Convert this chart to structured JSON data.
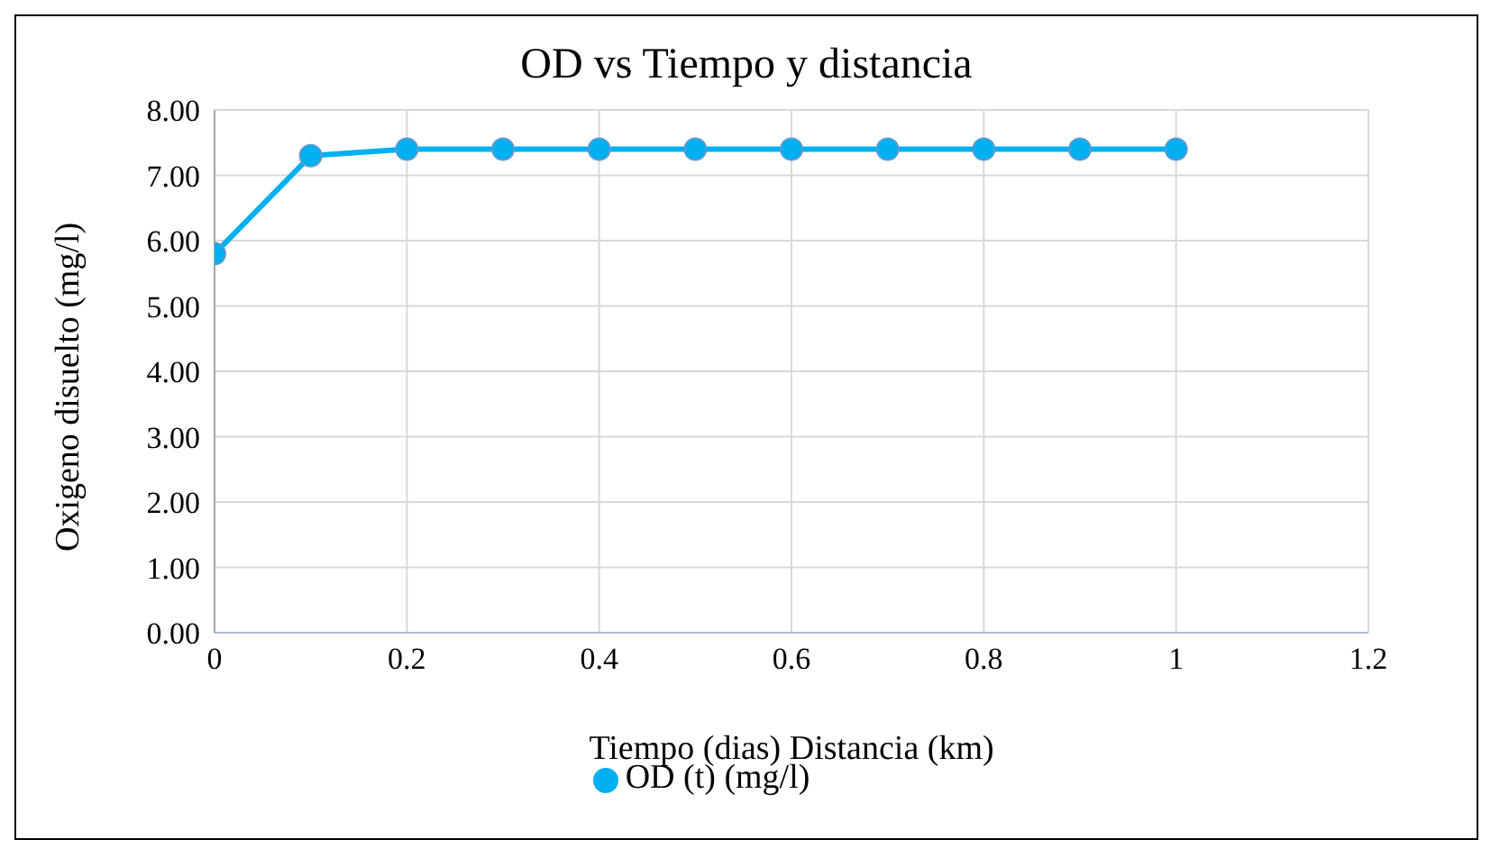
{
  "chart_data": {
    "type": "line",
    "title": "OD vs Tiempo y distancia",
    "xlabel": "Tiempo (dias)  Distancia (km)",
    "ylabel": "Oxigeno disuelto (mg/l)",
    "x": [
      0,
      0.1,
      0.2,
      0.3,
      0.4,
      0.5,
      0.6,
      0.7,
      0.8,
      0.9,
      1
    ],
    "series": [
      {
        "name": "OD (t)  (mg/l)",
        "color": "#00b0f0",
        "values": [
          5.8,
          7.3,
          7.4,
          7.4,
          7.4,
          7.4,
          7.4,
          7.4,
          7.4,
          7.4,
          7.4
        ]
      }
    ],
    "xlim": [
      0,
      1.2
    ],
    "xticks": [
      0,
      0.2,
      0.4,
      0.6,
      0.8,
      1,
      1.2
    ],
    "ylim": [
      0,
      8
    ],
    "yticks": [
      {
        "value": 0,
        "label": "0.00"
      },
      {
        "value": 1,
        "label": "1.00"
      },
      {
        "value": 2,
        "label": "2.00"
      },
      {
        "value": 3,
        "label": "3.00"
      },
      {
        "value": 4,
        "label": "4.00"
      },
      {
        "value": 5,
        "label": "5.00"
      },
      {
        "value": 6,
        "label": "6.00"
      },
      {
        "value": 7,
        "label": "7.00"
      },
      {
        "value": 8,
        "label": "8.00"
      }
    ],
    "grid": true,
    "legend": "bottom",
    "marker": "circle",
    "line_style": "solid"
  }
}
